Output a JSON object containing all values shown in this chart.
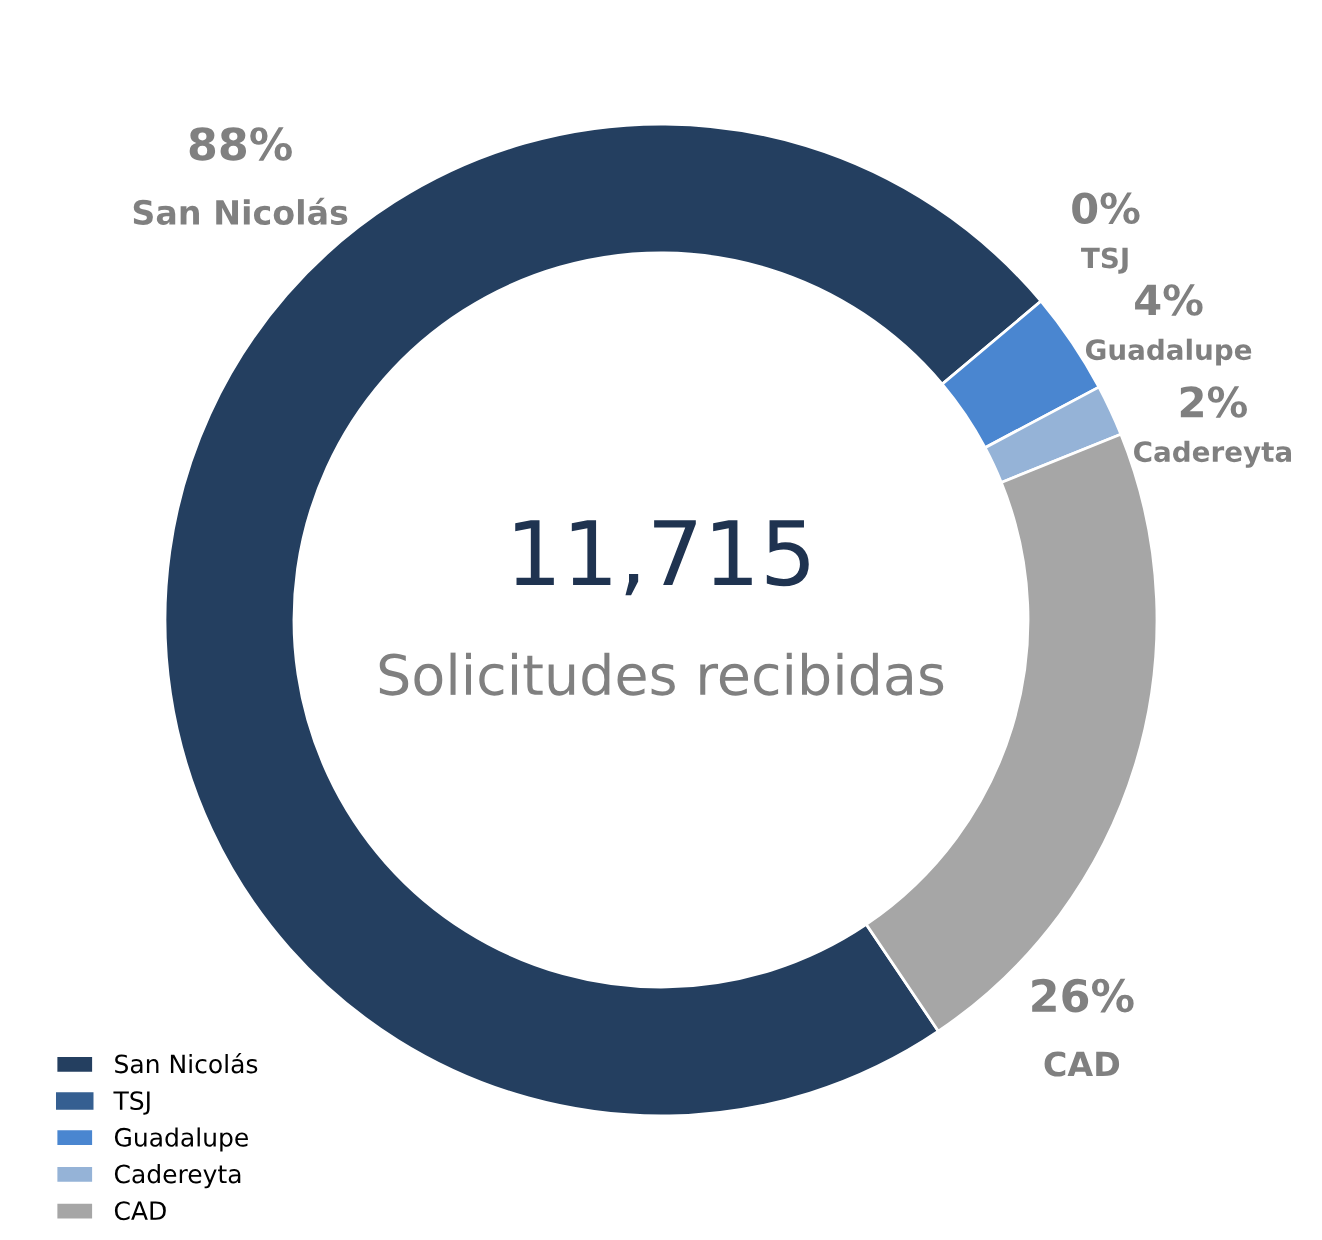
{
  "chart_data": {
    "type": "donut",
    "categories": [
      "San Nicolás",
      "TSJ",
      "Guadalupe",
      "Cadereyta",
      "CAD"
    ],
    "values": [
      88,
      0,
      4,
      2,
      26
    ],
    "value_labels": [
      "88%",
      "0%",
      "4%",
      "2%",
      "26%"
    ],
    "colors": [
      "#243f60",
      "#355f91",
      "#4a86d0",
      "#95b3d7",
      "#a6a6a6"
    ],
    "annotations": [
      "11,715",
      "Solicitudes recibidas"
    ],
    "legend": "bottom left"
  }
}
